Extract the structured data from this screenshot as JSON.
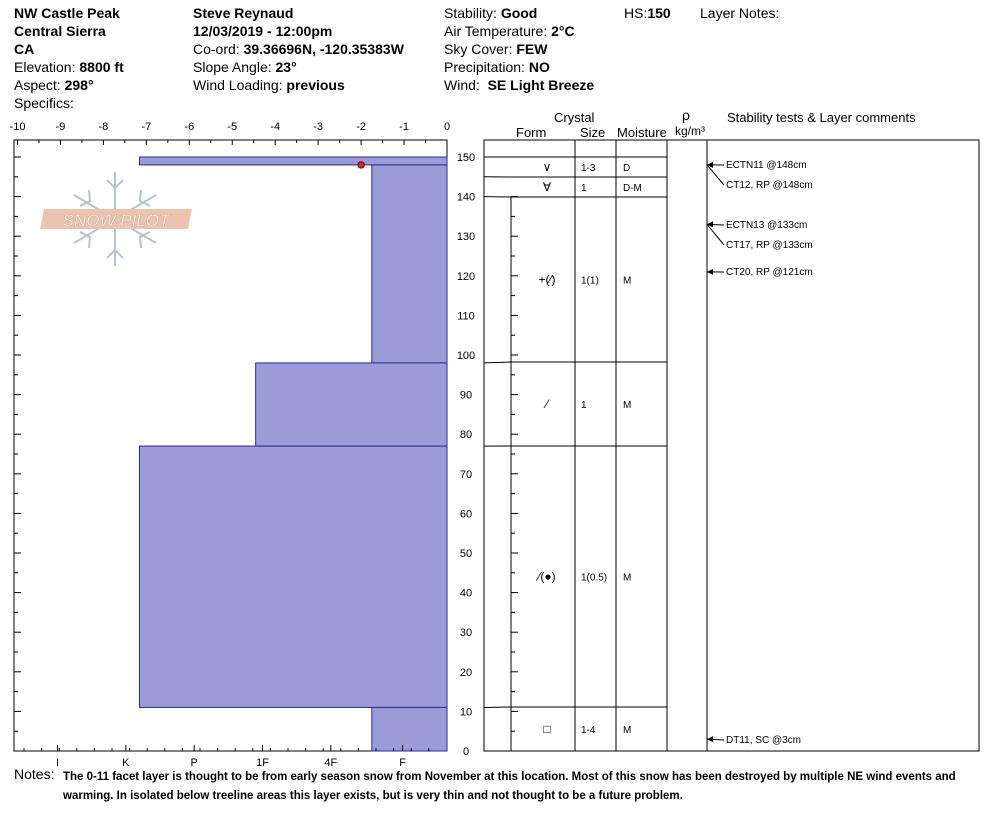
{
  "header": {
    "location": "NW Castle Peak",
    "range": "Central Sierra",
    "state": "CA",
    "elevation_label": "Elevation:",
    "elevation": "8800 ft",
    "aspect_label": "Aspect:",
    "aspect": "298°",
    "specifics_label": "Specifics:",
    "observer": "Steve Reynaud",
    "datetime": "12/03/2019 - 12:00pm",
    "coord_label": "Co-ord:",
    "coord": "39.36696N, -120.35383W",
    "slope_label": "Slope Angle:",
    "slope": "23°",
    "wind_loading_label": "Wind Loading:",
    "wind_loading": "previous",
    "stability_label": "Stability:",
    "stability": "Good",
    "air_temp_label": "Air Temperature:",
    "air_temp": "2°C",
    "sky_label": "Sky Cover:",
    "sky": "FEW",
    "precip_label": "Precipitation:",
    "precip": "NO",
    "wind_label": "Wind:",
    "wind": "SE Light Breeze",
    "hs_label": "HS:",
    "hs": "150",
    "layer_notes_label": "Layer Notes:"
  },
  "logo_text": "SNOW PILOT",
  "columns": {
    "crystal": "Crystal",
    "form": "Form",
    "size": "Size",
    "moisture": "Moisture",
    "rho": "ρ",
    "density_unit": "kg/m³",
    "comments": "Stability tests & Layer comments"
  },
  "chart_data": {
    "type": "snow-profile",
    "temperature_axis": {
      "ticks": [
        "-10",
        "-9",
        "-8",
        "-7",
        "-6",
        "-5",
        "-4",
        "-3",
        "-2",
        "-1",
        "0"
      ],
      "range": [
        -10,
        0
      ]
    },
    "hardness_axis": {
      "ticks": [
        "I",
        "K",
        "P",
        "1F",
        "4F",
        "F"
      ]
    },
    "height_axis": {
      "range": [
        0,
        150
      ],
      "ticks": [
        "0",
        "10",
        "20",
        "30",
        "40",
        "50",
        "60",
        "70",
        "80",
        "90",
        "100",
        "110",
        "120",
        "130",
        "140",
        "150"
      ]
    },
    "hardness_profile": [
      {
        "from": 148,
        "to": 150,
        "hardness_value": 4.5
      },
      {
        "from": 98,
        "to": 148,
        "hardness_value": 1.1
      },
      {
        "from": 77,
        "to": 98,
        "hardness_value": 2.8
      },
      {
        "from": 11,
        "to": 77,
        "hardness_value": 4.5
      },
      {
        "from": 0,
        "to": 11,
        "hardness_value": 1.1
      }
    ],
    "temperature_points": [
      {
        "height": 148,
        "temp": -2
      }
    ],
    "layers": [
      {
        "top": 150,
        "bottom": 145,
        "form": "∨",
        "size": "1-3",
        "moisture": "D"
      },
      {
        "top": 145,
        "bottom": 140,
        "form": "∀",
        "size": "1",
        "moisture": "D-M"
      },
      {
        "top": 140,
        "bottom": 98,
        "form": "+(⁄)",
        "size": "1(1)",
        "moisture": "M"
      },
      {
        "top": 98,
        "bottom": 77,
        "form": "⁄",
        "size": "1",
        "moisture": "M"
      },
      {
        "top": 77,
        "bottom": 11,
        "form": "⁄(●)",
        "size": "1(0.5)",
        "moisture": "M"
      },
      {
        "top": 11,
        "bottom": 0,
        "form": "□",
        "size": "1-4",
        "moisture": "M"
      }
    ],
    "tests": [
      {
        "height": 148,
        "text": "ECTN11 @148cm"
      },
      {
        "height": 148,
        "text": "CT12, RP @148cm"
      },
      {
        "height": 133,
        "text": "ECTN13 @133cm"
      },
      {
        "height": 133,
        "text": "CT17, RP @133cm"
      },
      {
        "height": 121,
        "text": "CT20, RP @121cm"
      },
      {
        "height": 3,
        "text": "DT11, SC @3cm"
      }
    ]
  },
  "notes": {
    "label": "Notes:",
    "text": "The 0-11 facet layer is thought to be from early season snow from November at this location.  Most of this snow has been destroyed by multiple NE wind events and warming.  In isolated below treeline areas this layer exists, but is very thin and not thought to be a future problem."
  }
}
